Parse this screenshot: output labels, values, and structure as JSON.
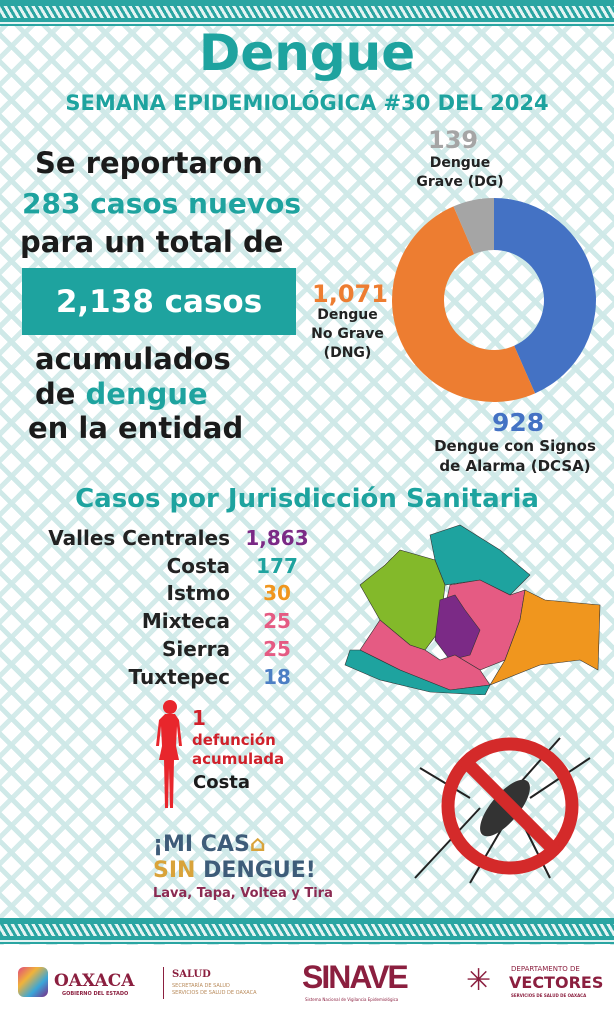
{
  "header": {
    "title": "Dengue",
    "subtitle": "SEMANA EPIDEMIOLÓGICA #30 DEL 2024"
  },
  "summary": {
    "line1": "Se reportaron",
    "line2": "283 casos nuevos",
    "line3": "para un total de",
    "total": "2,138 casos",
    "line4": "acumulados",
    "line5_pre": "de ",
    "line5_hl": "dengue",
    "line6": "en la entidad"
  },
  "chart_data": {
    "type": "pie",
    "variant": "donut",
    "total": 2138,
    "series": [
      {
        "name": "Dengue con Signos de Alarma (DCSA)",
        "label_1": "Dengue con Signos",
        "label_2": "de Alarma (DCSA)",
        "value": 928,
        "value_label": "928",
        "color": "#4472c4"
      },
      {
        "name": "Dengue No Grave (DNG)",
        "label_1": "Dengue",
        "label_2": "No Grave",
        "label_3": "(DNG)",
        "value": 1071,
        "value_label": "1,071",
        "color": "#ed7d31"
      },
      {
        "name": "Dengue Grave (DG)",
        "label_1": "Dengue",
        "label_2": "Grave (DG)",
        "value": 139,
        "value_label": "139",
        "color": "#a5a5a5"
      }
    ]
  },
  "jurisdicciones": {
    "title": "Casos por Jurisdicción Sanitaria",
    "rows": [
      {
        "name": "Valles Centrales",
        "value": "1,863",
        "color": "#7b2a86"
      },
      {
        "name": "Costa",
        "value": "177",
        "color": "#1ea39f"
      },
      {
        "name": "Istmo",
        "value": "30",
        "color": "#f0961e"
      },
      {
        "name": "Mixteca",
        "value": "25",
        "color": "#e55b83"
      },
      {
        "name": "Sierra",
        "value": "25",
        "color": "#e55b83"
      },
      {
        "name": "Tuxtepec",
        "value": "18",
        "color": "#4c7fc4"
      }
    ]
  },
  "deaths": {
    "count": "1",
    "line1": "defunción",
    "line2": "acumulada",
    "place": "Costa"
  },
  "campaign": {
    "w1": "¡MI CAS",
    "w2": "SIN",
    "w3": " DENGUE!",
    "tagline": "Lava, Tapa, Voltea y Tira"
  },
  "footer": {
    "oaxaca": "OAXACA",
    "oaxaca_sub": "GOBIERNO DEL ESTADO",
    "salud": "SALUD",
    "salud_1": "SECRETARÍA DE SALUD",
    "salud_2": "SERVICIOS DE SALUD DE OAXACA",
    "sinave": "SINAVE",
    "sinave_sub": "Sistema Nacional de Vigilancia Epidemiológica",
    "vect_1": "DEPARTAMENTO DE",
    "vect_2": "VECTORES",
    "vect_3": "SERVICIOS DE SALUD DE OAXACA"
  }
}
